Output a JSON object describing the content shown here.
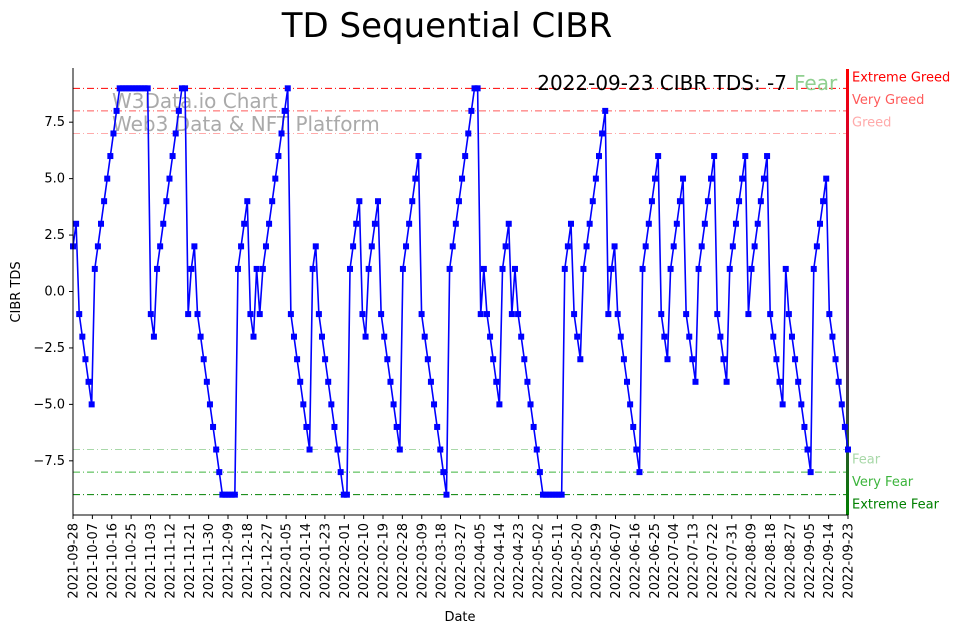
{
  "chart_data": {
    "type": "line",
    "title": "TD Sequential CIBR",
    "xlabel": "Date",
    "ylabel": "CIBR TDS",
    "ylim": [
      -9.9,
      9.9
    ],
    "xlim": [
      "2021-09-28",
      "2022-09-23"
    ],
    "y_ticks": [
      7.5,
      5.0,
      2.5,
      0.0,
      -2.5,
      -5.0,
      -7.5
    ],
    "y_tick_labels": [
      "7.5",
      "5.0",
      "2.5",
      "0.0",
      "−2.5",
      "−5.0",
      "−7.5"
    ],
    "x_ticks": [
      "2021-09-28",
      "2021-10-07",
      "2021-10-16",
      "2021-10-25",
      "2021-11-03",
      "2021-11-12",
      "2021-11-21",
      "2021-11-30",
      "2021-12-09",
      "2021-12-18",
      "2021-12-27",
      "2022-01-05",
      "2022-01-14",
      "2022-01-23",
      "2022-02-01",
      "2022-02-10",
      "2022-02-19",
      "2022-02-28",
      "2022-03-09",
      "2022-03-18",
      "2022-03-27",
      "2022-04-05",
      "2022-04-14",
      "2022-04-23",
      "2022-05-02",
      "2022-05-11",
      "2022-05-20",
      "2022-05-29",
      "2022-06-07",
      "2022-06-16",
      "2022-06-25",
      "2022-07-04",
      "2022-07-13",
      "2022-07-22",
      "2022-07-31",
      "2022-08-09",
      "2022-08-18",
      "2022-08-27",
      "2022-09-05",
      "2022-09-14",
      "2022-09-23"
    ],
    "grid": false,
    "annotation": "2022-09-23 CIBR TDS: -7",
    "annotation_status": "Fear",
    "watermark": [
      "W3Data.io Chart",
      "Web3 Data & NFT Platform"
    ],
    "series": [
      {
        "color": "#0000ff",
        "marker": "square",
        "values": [
          2,
          3,
          -1,
          -2,
          -3,
          -4,
          -5,
          1,
          2,
          3,
          4,
          5,
          6,
          7,
          8,
          9,
          9,
          9,
          9,
          9,
          9,
          9,
          9,
          9,
          9,
          -1,
          -2,
          1,
          2,
          3,
          4,
          5,
          6,
          7,
          8,
          9,
          9,
          -1,
          1,
          2,
          -1,
          -2,
          -3,
          -4,
          -5,
          -6,
          -7,
          -8,
          -9,
          -9,
          -9,
          -9,
          -9,
          1,
          2,
          3,
          4,
          -1,
          -2,
          1,
          -1,
          1,
          2,
          3,
          4,
          5,
          6,
          7,
          8,
          9,
          -1,
          -2,
          -3,
          -4,
          -5,
          -6,
          -7,
          1,
          2,
          -1,
          -2,
          -3,
          -4,
          -5,
          -6,
          -7,
          -8,
          -9,
          -9,
          1,
          2,
          3,
          4,
          -1,
          -2,
          1,
          2,
          3,
          4,
          -1,
          -2,
          -3,
          -4,
          -5,
          -6,
          -7,
          1,
          2,
          3,
          4,
          5,
          6,
          -1,
          -2,
          -3,
          -4,
          -5,
          -6,
          -7,
          -8,
          -9,
          1,
          2,
          3,
          4,
          5,
          6,
          7,
          8,
          9,
          9,
          -1,
          1,
          -1,
          -2,
          -3,
          -4,
          -5,
          1,
          2,
          3,
          -1,
          1,
          -1,
          -2,
          -3,
          -4,
          -5,
          -6,
          -7,
          -8,
          -9,
          -9,
          -9,
          -9,
          -9,
          -9,
          -9,
          1,
          2,
          3,
          -1,
          -2,
          -3,
          1,
          2,
          3,
          4,
          5,
          6,
          7,
          8,
          -1,
          1,
          2,
          -1,
          -2,
          -3,
          -4,
          -5,
          -6,
          -7,
          -8,
          1,
          2,
          3,
          4,
          5,
          6,
          -1,
          -2,
          -3,
          1,
          2,
          3,
          4,
          5,
          -1,
          -2,
          -3,
          -4,
          1,
          2,
          3,
          4,
          5,
          6,
          -1,
          -2,
          -3,
          -4,
          1,
          2,
          3,
          4,
          5,
          6,
          -1,
          1,
          2,
          3,
          4,
          5,
          6,
          -1,
          -2,
          -3,
          -4,
          -5,
          1,
          -1,
          -2,
          -3,
          -4,
          -5,
          -6,
          -7,
          -8,
          1,
          2,
          3,
          4,
          5,
          -1,
          -2,
          -3,
          -4,
          -5,
          -6,
          -7
        ]
      }
    ],
    "reference_lines": [
      {
        "y": 9,
        "label": "Extreme Greed",
        "color": "#ff0000"
      },
      {
        "y": 8,
        "label": "Very Greed",
        "color": "#ff5a5a"
      },
      {
        "y": 7,
        "label": "Greed",
        "color": "#ffaaaa"
      },
      {
        "y": -7,
        "label": "Fear",
        "color": "#a8d8a8"
      },
      {
        "y": -8,
        "label": "Very Fear",
        "color": "#3cb43c"
      },
      {
        "y": -9,
        "label": "Extreme Fear",
        "color": "#008000"
      }
    ],
    "status_colors": {
      "fear": "#90d090",
      "watermark": "#aaaaaa",
      "gauge_top": "#ff0000",
      "gauge_mid": "#800080",
      "gauge_bottom": "#008000"
    }
  }
}
